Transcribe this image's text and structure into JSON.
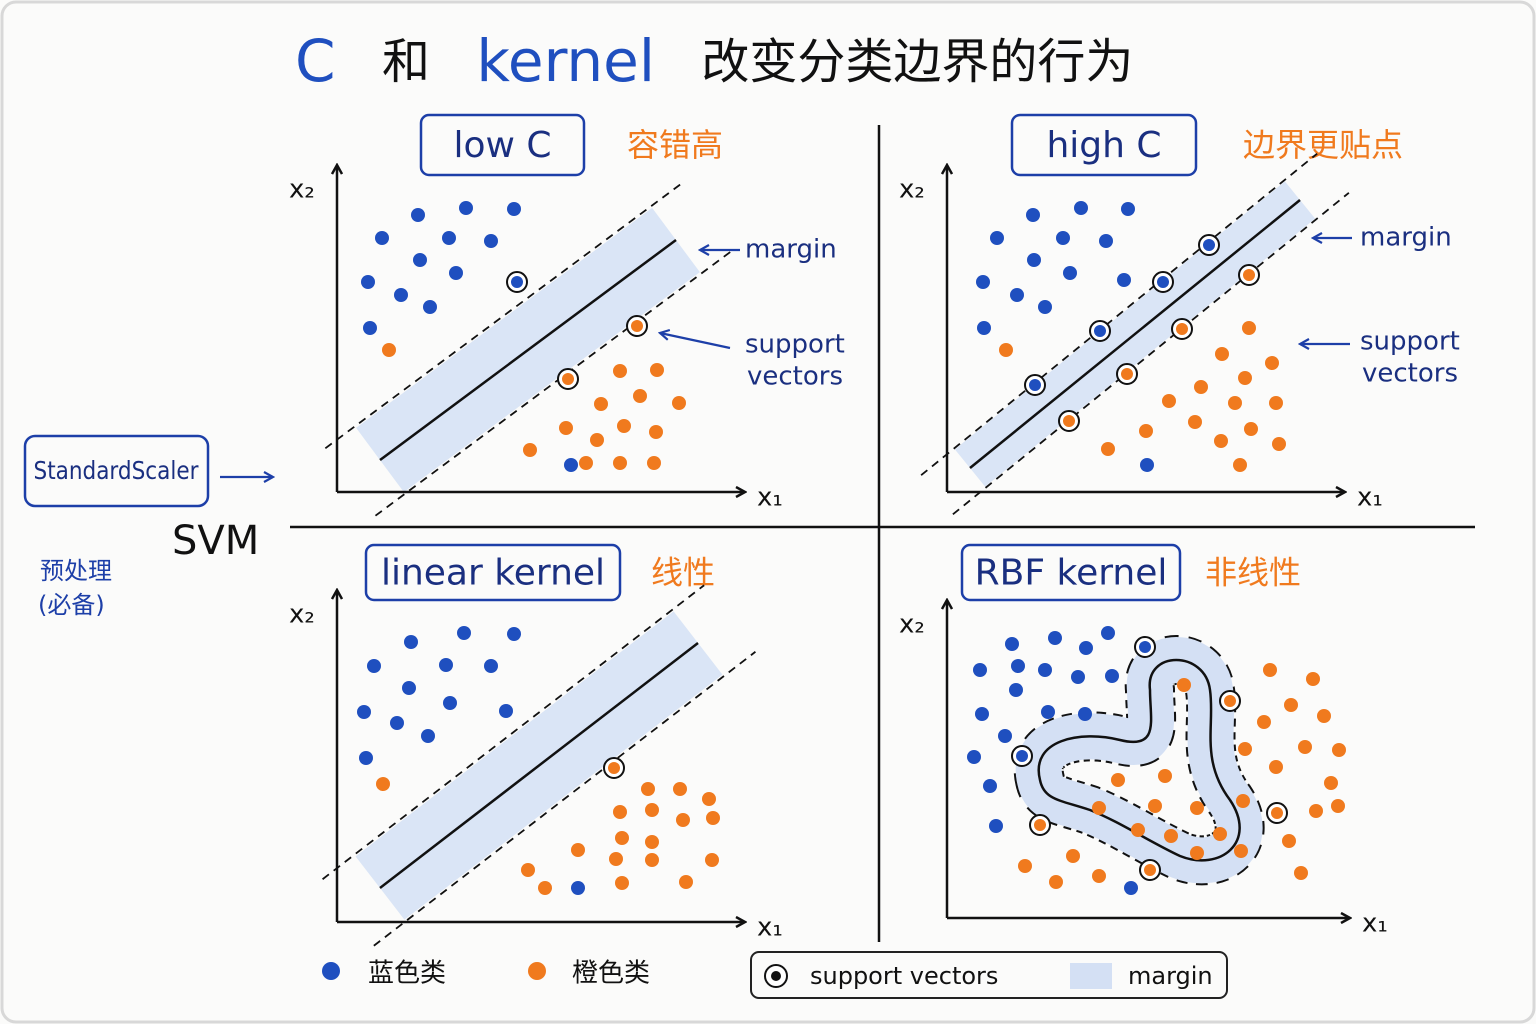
{
  "title": {
    "parts": [
      "C",
      "和",
      "kernel",
      "改变分类边界的行为"
    ]
  },
  "panels": [
    {
      "label": "low C",
      "note": "容错高",
      "x_axis": "x₁",
      "y_axis": "x₂",
      "annotations": [
        "margin",
        "support",
        "vectors"
      ]
    },
    {
      "label": "high C",
      "note": "边界更贴点",
      "x_axis": "x₁",
      "y_axis": "x₂",
      "annotations": [
        "margin",
        "support",
        "vectors"
      ]
    },
    {
      "label": "linear kernel",
      "note": "线性",
      "x_axis": "x₁",
      "y_axis": "x₂"
    },
    {
      "label": "RBF kernel",
      "note": "非线性",
      "x_axis": "x₁",
      "y_axis": "x₂"
    }
  ],
  "left": {
    "box": "StandardScaler",
    "model": "SVM",
    "note": [
      "预处理",
      "(必备)"
    ]
  },
  "legend": [
    "蓝色类",
    "橙色类",
    "support vectors",
    "margin"
  ]
}
